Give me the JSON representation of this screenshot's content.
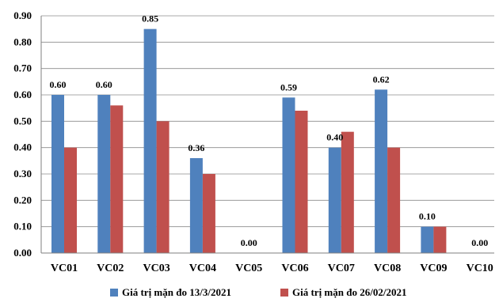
{
  "chart_data": {
    "type": "bar",
    "categories": [
      "VC01",
      "VC02",
      "VC03",
      "VC04",
      "VC05",
      "VC06",
      "VC07",
      "VC08",
      "VC09",
      "VC10"
    ],
    "series": [
      {
        "name": "Giá trị mặn đo 13/3/2021",
        "color": "#4F81BD",
        "values": [
          0.6,
          0.6,
          0.85,
          0.36,
          0.0,
          0.59,
          0.4,
          0.62,
          0.1,
          0.0
        ],
        "labels": [
          "0.60",
          "0.60",
          "0.85",
          "0.36",
          "0.00",
          "0.59",
          "0.40",
          "0.62",
          "0.10",
          "0.00"
        ]
      },
      {
        "name": "Giá trị mặn đo 26/02/2021",
        "color": "#C0504D",
        "values": [
          0.4,
          0.56,
          0.5,
          0.3,
          0.0,
          0.54,
          0.46,
          0.4,
          0.1,
          0.0
        ]
      }
    ],
    "yticks": [
      "0.00",
      "0.10",
      "0.20",
      "0.30",
      "0.40",
      "0.50",
      "0.60",
      "0.70",
      "0.80",
      "0.90"
    ],
    "ylim": [
      0,
      0.9
    ],
    "grid": true,
    "legend_position": "bottom",
    "title": "",
    "xlabel": "",
    "ylabel": ""
  }
}
